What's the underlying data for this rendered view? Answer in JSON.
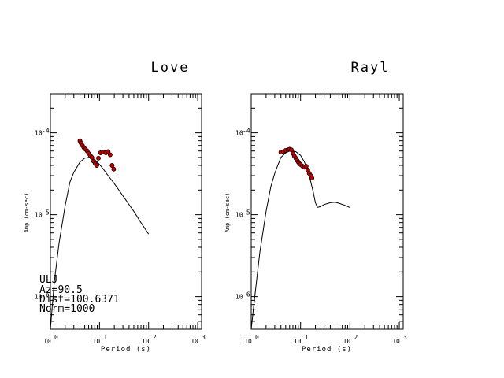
{
  "chart_data": [
    {
      "type": "scatter",
      "title": "Love",
      "xlabel": "Period (s)",
      "ylabel": "Amp (cm-sec)",
      "xscale": "log",
      "yscale": "log",
      "xlim": [
        1,
        1200
      ],
      "ylim": [
        4e-07,
        0.0003
      ],
      "x_tick_labels": [
        "10",
        "10",
        "10",
        "10"
      ],
      "x_tick_exponents": [
        "0",
        "1",
        "2",
        "3"
      ],
      "y_tick_labels": [
        "10",
        "10",
        "10"
      ],
      "y_tick_exponents": [
        "-4",
        "-5",
        "-6"
      ],
      "info_lines": [
        "ULJ",
        "Az=90.5",
        "Dist=100.6371",
        "Norm=1000"
      ],
      "series": [
        {
          "style": "line",
          "x": [
            1.0,
            1.2,
            1.5,
            2.0,
            2.5,
            3.0,
            4.0,
            5.0,
            6.0,
            7.0,
            8.0,
            9.0,
            10.0,
            12.0,
            15.0,
            20.0,
            30.0,
            50.0,
            70.0,
            100.0
          ],
          "y": [
            4e-07,
            1.5e-06,
            4.5e-06,
            1.3e-05,
            2.5e-05,
            3.3e-05,
            4.4e-05,
            4.9e-05,
            5e-05,
            4.9e-05,
            4.7e-05,
            4.4e-05,
            4.1e-05,
            3.6e-05,
            3e-05,
            2.4e-05,
            1.7e-05,
            1.1e-05,
            8e-06,
            5.8e-06
          ]
        },
        {
          "style": "points",
          "color": "#c00000",
          "x": [
            4.0,
            4.2,
            4.5,
            4.8,
            5.2,
            5.6,
            6.0,
            6.5,
            7.0,
            7.6,
            8.2,
            8.8,
            9.5,
            10.5,
            12.0,
            13.5,
            15.0,
            16.5,
            18.0,
            19.5
          ],
          "y": [
            8e-05,
            7.5e-05,
            7e-05,
            6.6e-05,
            6.3e-05,
            6e-05,
            5.6e-05,
            5.3e-05,
            5e-05,
            4.5e-05,
            4.2e-05,
            4e-05,
            4.9e-05,
            5.7e-05,
            5.8e-05,
            5.7e-05,
            5.9e-05,
            5.4e-05,
            4e-05,
            3.6e-05
          ]
        }
      ]
    },
    {
      "type": "scatter",
      "title": "Rayl",
      "xlabel": "Period (s)",
      "ylabel": "Amp (cm-sec)",
      "xscale": "log",
      "yscale": "log",
      "xlim": [
        1,
        1200
      ],
      "ylim": [
        4e-07,
        0.0003
      ],
      "x_tick_labels": [
        "10",
        "10",
        "10",
        "10"
      ],
      "x_tick_exponents": [
        "0",
        "1",
        "2",
        "3"
      ],
      "y_tick_labels": [
        "10",
        "10",
        "10"
      ],
      "y_tick_exponents": [
        "-4",
        "-5",
        "-6"
      ],
      "series": [
        {
          "style": "line",
          "x": [
            1.0,
            1.2,
            1.5,
            2.0,
            2.5,
            3.0,
            3.5,
            4.0,
            5.0,
            6.0,
            7.0,
            8.0,
            10.0,
            12.0,
            15.0,
            18.0,
            20.0,
            22.0,
            25.0,
            30.0,
            40.0,
            50.0,
            60.0,
            80.0,
            100.0
          ],
          "y": [
            4e-07,
            1.1e-06,
            3.5e-06,
            1.1e-05,
            2.2e-05,
            3.2e-05,
            4.1e-05,
            5e-05,
            5.7e-05,
            6e-05,
            6e-05,
            5.9e-05,
            5.3e-05,
            4.4e-05,
            3e-05,
            1.9e-05,
            1.4e-05,
            1.23e-05,
            1.25e-05,
            1.33e-05,
            1.4e-05,
            1.42e-05,
            1.38e-05,
            1.3e-05,
            1.22e-05
          ]
        },
        {
          "style": "points",
          "color": "#c00000",
          "x": [
            4.0,
            4.5,
            5.0,
            5.5,
            6.0,
            6.5,
            7.0,
            7.5,
            8.0,
            8.5,
            9.0,
            9.5,
            10.0,
            11.0,
            12.0,
            13.0,
            14.0,
            15.0,
            16.0,
            17.0
          ],
          "y": [
            5.8e-05,
            5.9e-05,
            6.1e-05,
            6.2e-05,
            6.3e-05,
            6.2e-05,
            5.6e-05,
            5.2e-05,
            4.9e-05,
            4.6e-05,
            4.4e-05,
            4.2e-05,
            4.1e-05,
            3.9e-05,
            3.8e-05,
            3.9e-05,
            3.5e-05,
            3.2e-05,
            3e-05,
            2.8e-05
          ]
        }
      ]
    }
  ]
}
